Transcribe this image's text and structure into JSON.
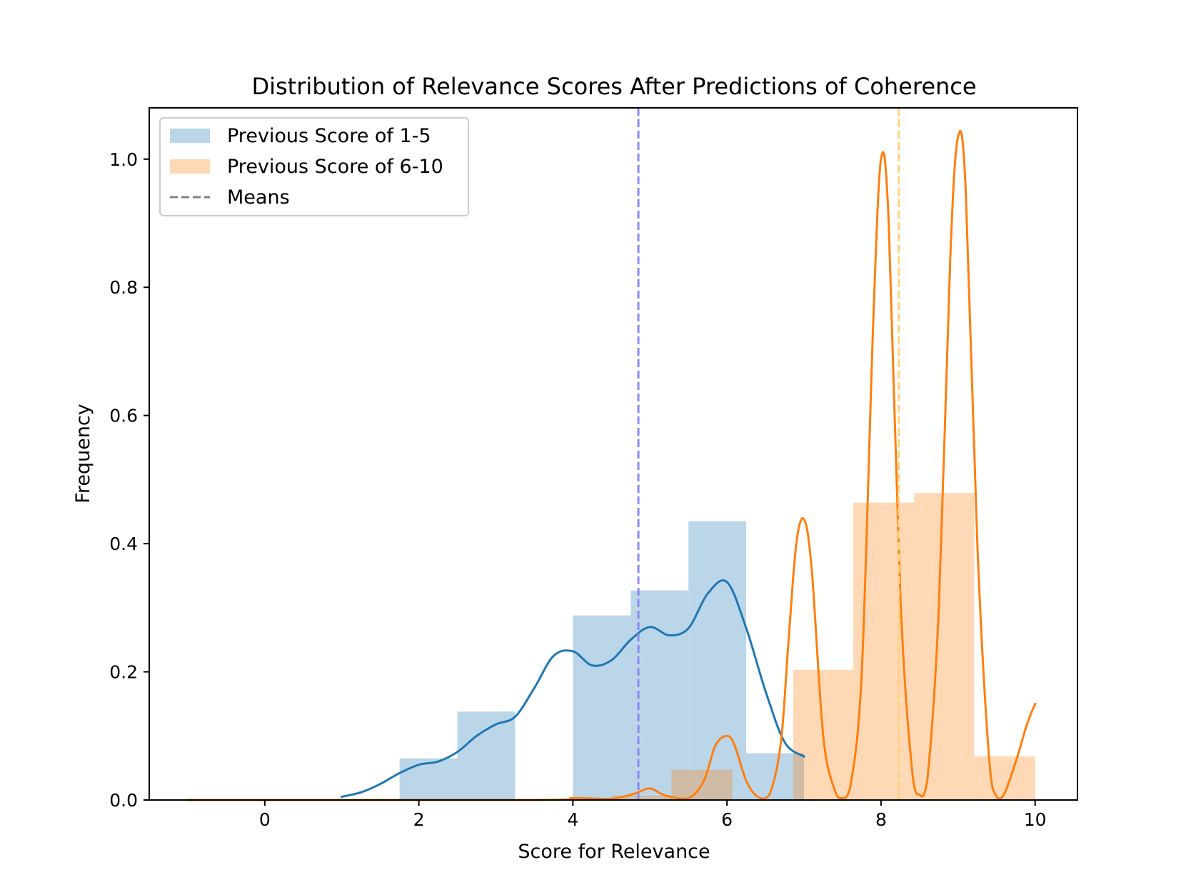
{
  "chart_data": {
    "type": "bar",
    "title": "Distribution of Relevance Scores After Predictions of Coherence",
    "xlabel": "Score for Relevance",
    "ylabel": "Frequency",
    "xlim": [
      -1.5,
      10.55
    ],
    "ylim": [
      0,
      1.08
    ],
    "xticks": [
      0,
      2,
      4,
      6,
      8,
      10
    ],
    "yticks": [
      0.0,
      0.2,
      0.4,
      0.6,
      0.8,
      1.0
    ],
    "legend_position": "upper left",
    "grid": false,
    "series": [
      {
        "name": "Previous Score of 1-5",
        "kind": "histogram",
        "color": "#1f77b4",
        "bar_alpha": 0.3,
        "bins": [
          {
            "x0": 1.75,
            "x1": 2.5,
            "value": 0.065
          },
          {
            "x0": 2.5,
            "x1": 3.25,
            "value": 0.138
          },
          {
            "x0": 3.25,
            "x1": 4.0,
            "value": 0.0
          },
          {
            "x0": 4.0,
            "x1": 4.75,
            "value": 0.288
          },
          {
            "x0": 4.75,
            "x1": 5.5,
            "value": 0.327
          },
          {
            "x0": 5.5,
            "x1": 6.25,
            "value": 0.435
          },
          {
            "x0": 6.25,
            "x1": 7.0,
            "value": 0.073
          }
        ]
      },
      {
        "name": "Previous Score of 6-10",
        "kind": "histogram",
        "color": "#ff7f0e",
        "bar_alpha": 0.3,
        "bins": [
          {
            "x0": 4.5,
            "x1": 5.28,
            "value": 0.007
          },
          {
            "x0": 5.28,
            "x1": 6.07,
            "value": 0.047
          },
          {
            "x0": 6.07,
            "x1": 6.86,
            "value": 0.0
          },
          {
            "x0": 6.86,
            "x1": 7.64,
            "value": 0.203
          },
          {
            "x0": 7.64,
            "x1": 8.43,
            "value": 0.464
          },
          {
            "x0": 8.43,
            "x1": 9.21,
            "value": 0.479
          },
          {
            "x0": 9.21,
            "x1": 10.0,
            "value": 0.068
          }
        ]
      },
      {
        "name": "Previous Score of 1-5 (density)",
        "kind": "kde",
        "color": "#1f77b4",
        "x": [
          1.0,
          1.25,
          1.5,
          1.75,
          2.0,
          2.25,
          2.5,
          2.75,
          3.0,
          3.25,
          3.5,
          3.75,
          4.0,
          4.25,
          4.5,
          4.75,
          5.0,
          5.25,
          5.5,
          5.75,
          6.0,
          6.25,
          6.5,
          6.75,
          7.0
        ],
        "y": [
          0.005,
          0.012,
          0.025,
          0.042,
          0.055,
          0.06,
          0.075,
          0.1,
          0.118,
          0.13,
          0.175,
          0.225,
          0.232,
          0.21,
          0.218,
          0.25,
          0.27,
          0.257,
          0.268,
          0.322,
          0.34,
          0.268,
          0.17,
          0.09,
          0.068
        ]
      },
      {
        "name": "Previous Score of 6-10 (density)",
        "kind": "kde",
        "color": "#ff7f0e",
        "x": [
          -1.0,
          3.5,
          4.0,
          4.5,
          4.8,
          5.0,
          5.2,
          5.5,
          5.7,
          5.85,
          6.0,
          6.1,
          6.25,
          6.4,
          6.55,
          6.7,
          6.8,
          6.9,
          7.0,
          7.1,
          7.25,
          7.4,
          7.5,
          7.6,
          7.75,
          7.9,
          8.0,
          8.1,
          8.25,
          8.4,
          8.5,
          8.6,
          8.75,
          8.9,
          9.0,
          9.1,
          9.25,
          9.4,
          9.5,
          9.6,
          9.75,
          9.9,
          10.0
        ],
        "y": [
          0.0,
          0.0,
          0.003,
          0.002,
          0.01,
          0.018,
          0.007,
          0.003,
          0.03,
          0.085,
          0.1,
          0.085,
          0.03,
          0.005,
          0.008,
          0.09,
          0.25,
          0.4,
          0.438,
          0.36,
          0.1,
          0.015,
          0.003,
          0.02,
          0.2,
          0.75,
          1.0,
          0.9,
          0.32,
          0.05,
          0.008,
          0.03,
          0.3,
          0.85,
          1.035,
          0.95,
          0.4,
          0.07,
          0.005,
          0.01,
          0.06,
          0.12,
          0.15
        ]
      }
    ],
    "means": [
      {
        "series": "Previous Score of 1-5",
        "x": 4.85,
        "color": "#8a8af5"
      },
      {
        "series": "Previous Score of 6-10",
        "x": 8.23,
        "color": "#ffd27f"
      }
    ],
    "legend": [
      {
        "label": "Previous Score of 1-5",
        "symbol": "patch",
        "color": "#1f77b4"
      },
      {
        "label": "Previous Score of 6-10",
        "symbol": "patch",
        "color": "#ff7f0e"
      },
      {
        "label": "Means",
        "symbol": "dashed-line",
        "color": "#808080"
      }
    ]
  }
}
